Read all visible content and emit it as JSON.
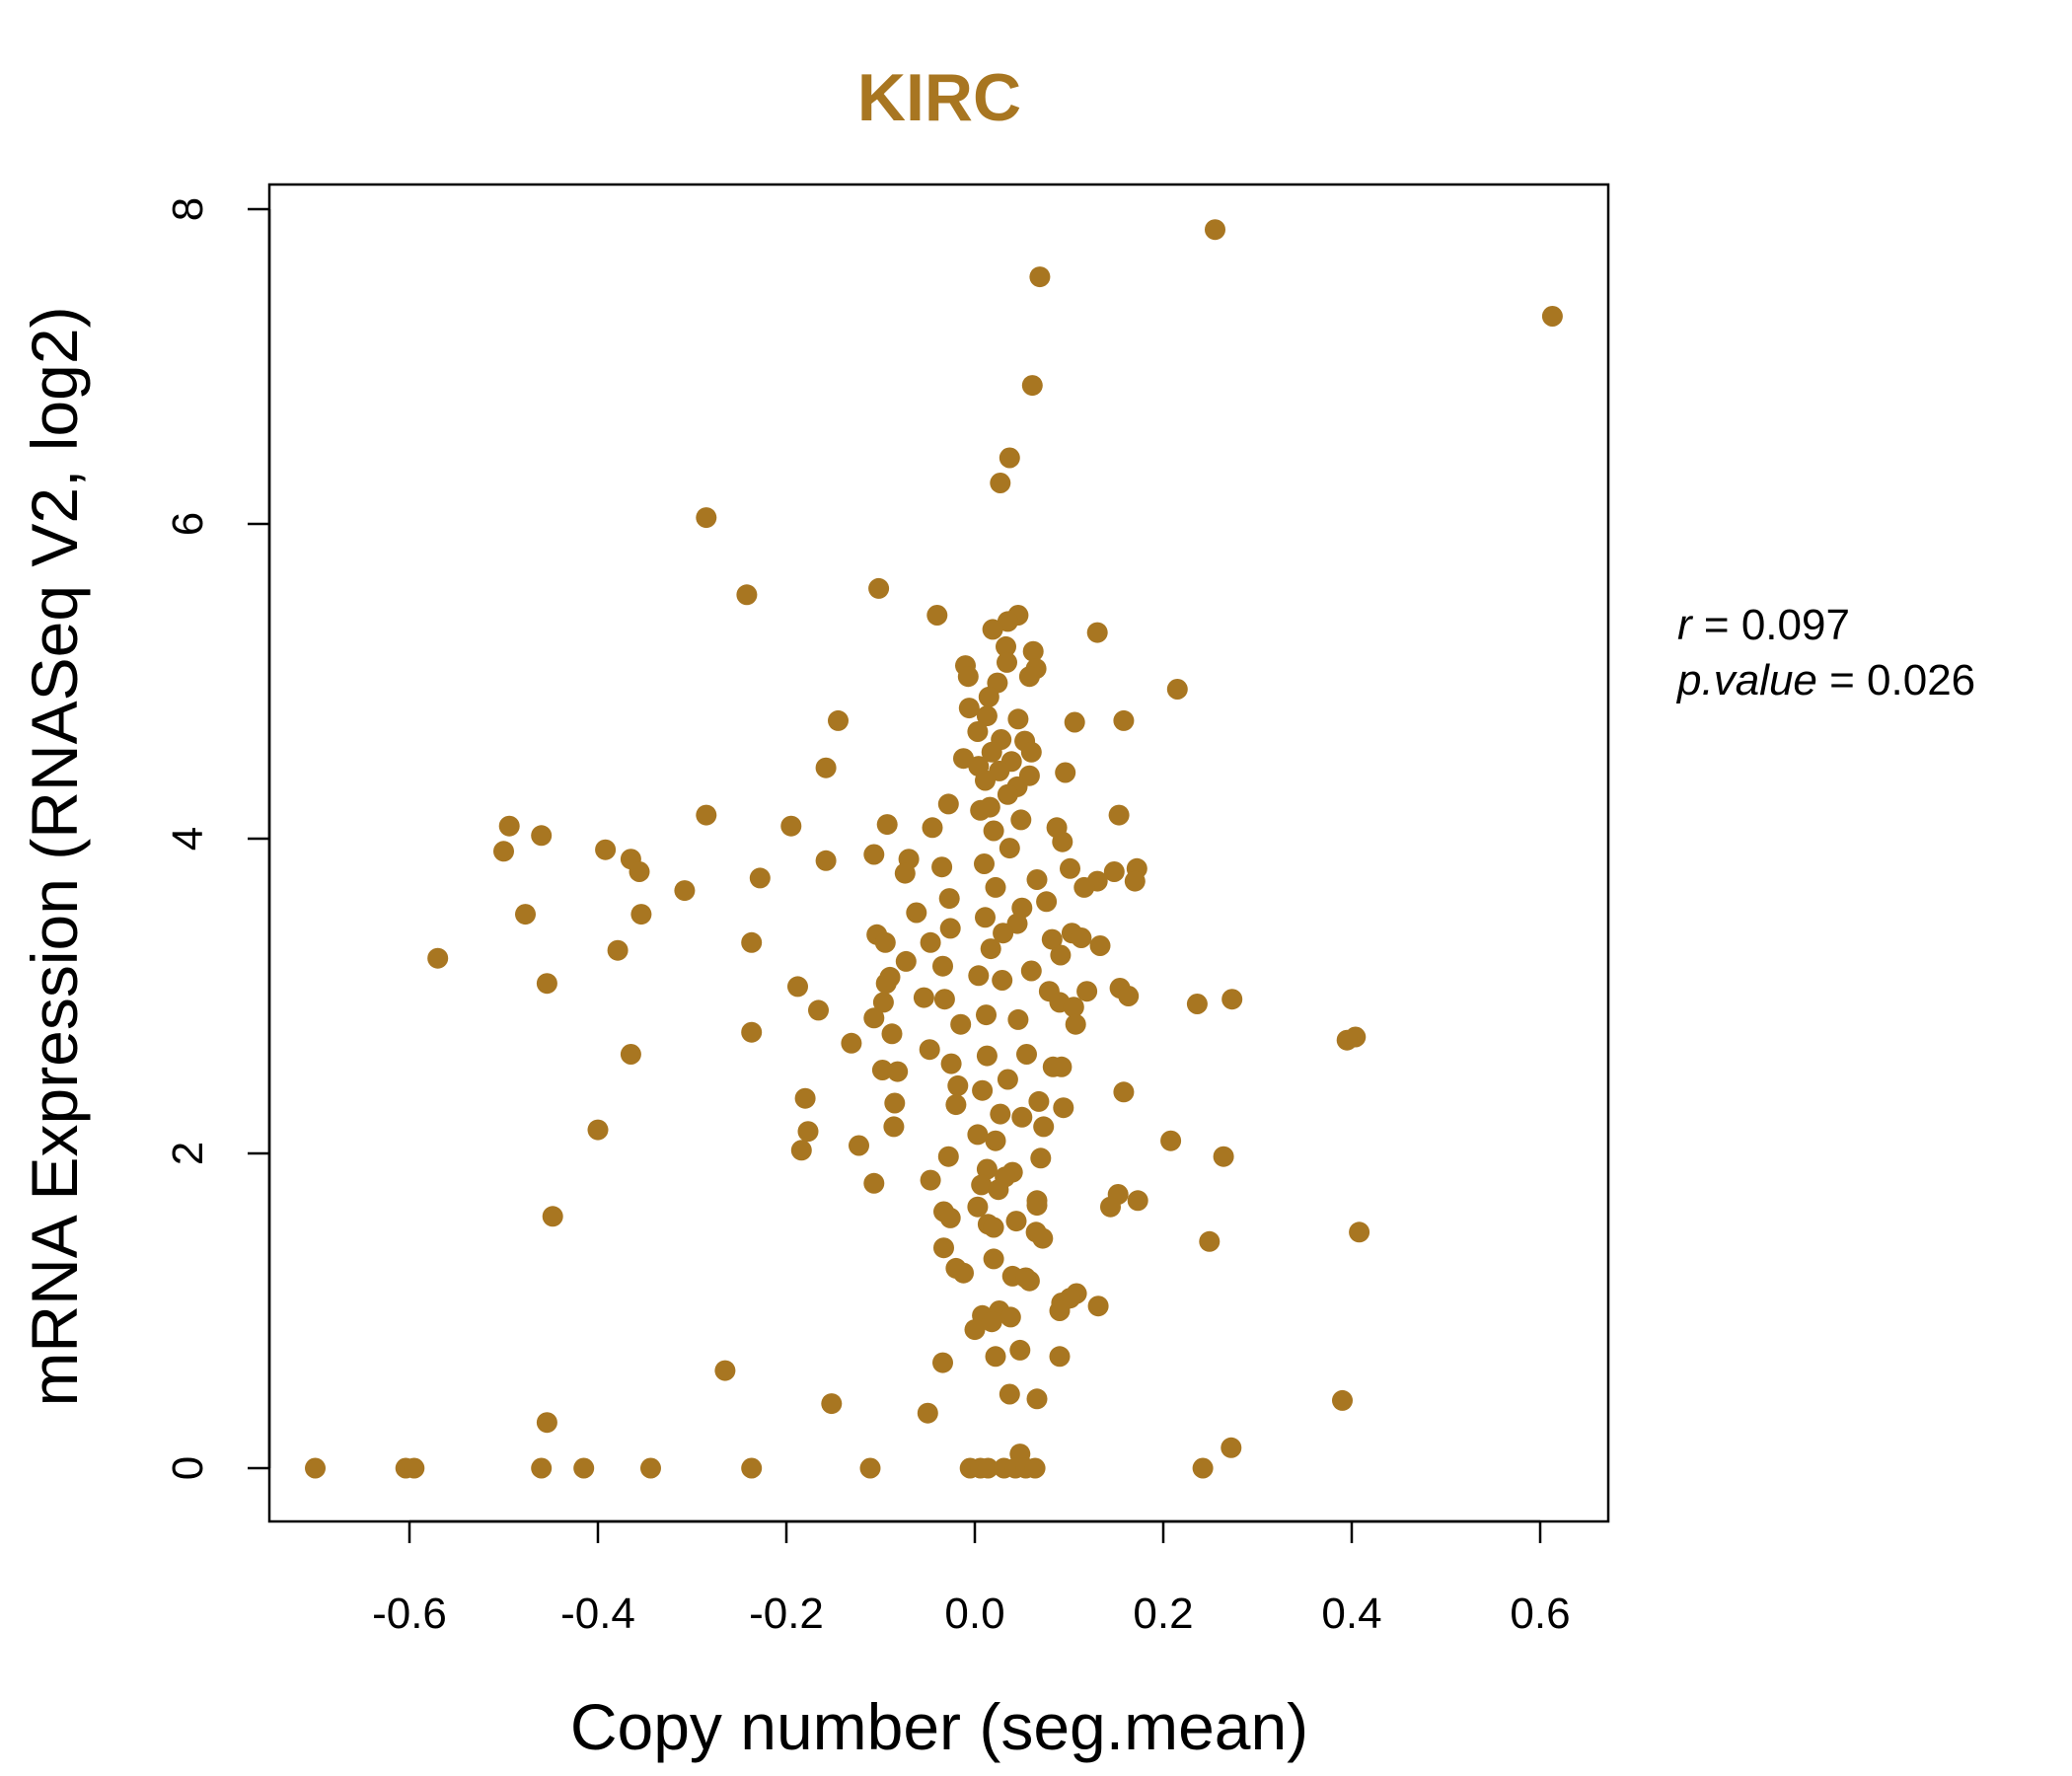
{
  "chart_data": {
    "type": "scatter",
    "title": "KIRC",
    "xlabel": "Copy number (seg.mean)",
    "ylabel": "mRNA Expression (RNASeq V2, log2)",
    "xlim": [
      -0.75,
      0.67
    ],
    "ylim": [
      -0.3,
      8.2
    ],
    "xticks": [
      "-0.6",
      "-0.4",
      "-0.2",
      "0.0",
      "0.2",
      "0.4",
      "0.6"
    ],
    "yticks": [
      "0",
      "2",
      "4",
      "6",
      "8"
    ],
    "grid": false,
    "color": "#A87621",
    "stats": {
      "r_label": "r",
      "r_value": "0.097",
      "p_label": "p.value",
      "p_value": "0.026"
    },
    "points": [
      [
        0.255,
        7.87
      ],
      [
        0.069,
        7.57
      ],
      [
        0.613,
        7.32
      ],
      [
        0.061,
        6.88
      ],
      [
        0.037,
        6.42
      ],
      [
        0.027,
        6.26
      ],
      [
        -0.285,
        6.04
      ],
      [
        -0.102,
        5.59
      ],
      [
        -0.242,
        5.55
      ],
      [
        -0.04,
        5.42
      ],
      [
        0.046,
        5.42
      ],
      [
        0.035,
        5.38
      ],
      [
        0.019,
        5.33
      ],
      [
        0.13,
        5.31
      ],
      [
        0.062,
        5.19
      ],
      [
        0.033,
        5.22
      ],
      [
        -0.01,
        5.1
      ],
      [
        0.065,
        5.08
      ],
      [
        0.034,
        5.12
      ],
      [
        0.058,
        5.03
      ],
      [
        -0.007,
        5.03
      ],
      [
        0.024,
        4.99
      ],
      [
        0.215,
        4.95
      ],
      [
        0.015,
        4.9
      ],
      [
        -0.006,
        4.83
      ],
      [
        0.013,
        4.78
      ],
      [
        0.106,
        4.74
      ],
      [
        0.158,
        4.75
      ],
      [
        -0.145,
        4.75
      ],
      [
        0.046,
        4.76
      ],
      [
        0.003,
        4.68
      ],
      [
        0.028,
        4.63
      ],
      [
        0.053,
        4.62
      ],
      [
        0.06,
        4.55
      ],
      [
        -0.012,
        4.51
      ],
      [
        0.018,
        4.55
      ],
      [
        0.039,
        4.49
      ],
      [
        -0.158,
        4.45
      ],
      [
        0.096,
        4.42
      ],
      [
        0.058,
        4.4
      ],
      [
        0.004,
        4.46
      ],
      [
        0.026,
        4.43
      ],
      [
        0.011,
        4.37
      ],
      [
        0.045,
        4.33
      ],
      [
        -0.028,
        4.22
      ],
      [
        0.016,
        4.2
      ],
      [
        0.035,
        4.28
      ],
      [
        0.006,
        4.18
      ],
      [
        0.153,
        4.15
      ],
      [
        -0.285,
        4.15
      ],
      [
        0.049,
        4.12
      ],
      [
        -0.494,
        4.08
      ],
      [
        -0.195,
        4.08
      ],
      [
        -0.093,
        4.09
      ],
      [
        0.087,
        4.07
      ],
      [
        -0.045,
        4.07
      ],
      [
        0.02,
        4.05
      ],
      [
        -0.46,
        4.02
      ],
      [
        0.093,
        3.98
      ],
      [
        -0.392,
        3.93
      ],
      [
        -0.5,
        3.92
      ],
      [
        -0.107,
        3.9
      ],
      [
        -0.07,
        3.87
      ],
      [
        -0.365,
        3.87
      ],
      [
        -0.158,
        3.86
      ],
      [
        0.037,
        3.94
      ],
      [
        0.01,
        3.84
      ],
      [
        0.101,
        3.81
      ],
      [
        -0.035,
        3.82
      ],
      [
        0.172,
        3.81
      ],
      [
        -0.356,
        3.79
      ],
      [
        0.148,
        3.79
      ],
      [
        -0.074,
        3.78
      ],
      [
        0.13,
        3.73
      ],
      [
        -0.228,
        3.75
      ],
      [
        0.066,
        3.74
      ],
      [
        0.17,
        3.73
      ],
      [
        0.116,
        3.69
      ],
      [
        -0.308,
        3.67
      ],
      [
        0.022,
        3.69
      ],
      [
        -0.027,
        3.62
      ],
      [
        0.076,
        3.6
      ],
      [
        0.05,
        3.56
      ],
      [
        -0.062,
        3.53
      ],
      [
        -0.354,
        3.52
      ],
      [
        -0.477,
        3.52
      ],
      [
        0.011,
        3.5
      ],
      [
        0.045,
        3.46
      ],
      [
        -0.026,
        3.43
      ],
      [
        0.03,
        3.4
      ],
      [
        0.103,
        3.4
      ],
      [
        -0.104,
        3.39
      ],
      [
        0.082,
        3.36
      ],
      [
        0.113,
        3.37
      ],
      [
        -0.095,
        3.34
      ],
      [
        -0.237,
        3.34
      ],
      [
        -0.047,
        3.34
      ],
      [
        0.133,
        3.32
      ],
      [
        -0.379,
        3.29
      ],
      [
        0.017,
        3.3
      ],
      [
        0.091,
        3.26
      ],
      [
        -0.57,
        3.24
      ],
      [
        -0.073,
        3.22
      ],
      [
        -0.034,
        3.19
      ],
      [
        0.06,
        3.16
      ],
      [
        0.004,
        3.13
      ],
      [
        -0.09,
        3.12
      ],
      [
        0.029,
        3.1
      ],
      [
        -0.454,
        3.08
      ],
      [
        -0.094,
        3.08
      ],
      [
        -0.188,
        3.06
      ],
      [
        0.154,
        3.05
      ],
      [
        0.119,
        3.03
      ],
      [
        0.079,
        3.03
      ],
      [
        -0.054,
        2.99
      ],
      [
        0.163,
        3.0
      ],
      [
        0.273,
        2.98
      ],
      [
        -0.032,
        2.98
      ],
      [
        0.09,
        2.96
      ],
      [
        0.236,
        2.95
      ],
      [
        -0.097,
        2.96
      ],
      [
        0.105,
        2.93
      ],
      [
        -0.166,
        2.91
      ],
      [
        0.012,
        2.88
      ],
      [
        -0.107,
        2.86
      ],
      [
        0.046,
        2.85
      ],
      [
        -0.015,
        2.82
      ],
      [
        0.107,
        2.82
      ],
      [
        -0.088,
        2.76
      ],
      [
        -0.237,
        2.77
      ],
      [
        0.404,
        2.74
      ],
      [
        0.395,
        2.72
      ],
      [
        -0.131,
        2.7
      ],
      [
        -0.048,
        2.66
      ],
      [
        0.055,
        2.63
      ],
      [
        -0.365,
        2.63
      ],
      [
        0.013,
        2.62
      ],
      [
        -0.025,
        2.57
      ],
      [
        0.083,
        2.55
      ],
      [
        0.092,
        2.55
      ],
      [
        -0.098,
        2.53
      ],
      [
        -0.082,
        2.52
      ],
      [
        0.035,
        2.47
      ],
      [
        -0.018,
        2.43
      ],
      [
        0.008,
        2.4
      ],
      [
        0.158,
        2.39
      ],
      [
        -0.18,
        2.35
      ],
      [
        -0.085,
        2.32
      ],
      [
        0.094,
        2.29
      ],
      [
        -0.02,
        2.31
      ],
      [
        0.068,
        2.33
      ],
      [
        0.027,
        2.25
      ],
      [
        0.05,
        2.23
      ],
      [
        0.073,
        2.17
      ],
      [
        -0.086,
        2.17
      ],
      [
        -0.177,
        2.14
      ],
      [
        -0.4,
        2.15
      ],
      [
        0.003,
        2.12
      ],
      [
        0.022,
        2.08
      ],
      [
        0.208,
        2.08
      ],
      [
        -0.123,
        2.05
      ],
      [
        -0.184,
        2.02
      ],
      [
        0.264,
        1.98
      ],
      [
        0.07,
        1.97
      ],
      [
        -0.028,
        1.98
      ],
      [
        0.013,
        1.9
      ],
      [
        0.04,
        1.88
      ],
      [
        0.032,
        1.85
      ],
      [
        -0.107,
        1.81
      ],
      [
        -0.047,
        1.83
      ],
      [
        0.007,
        1.8
      ],
      [
        0.025,
        1.77
      ],
      [
        0.152,
        1.74
      ],
      [
        0.173,
        1.7
      ],
      [
        0.066,
        1.7
      ],
      [
        0.144,
        1.66
      ],
      [
        0.066,
        1.67
      ],
      [
        0.003,
        1.66
      ],
      [
        -0.033,
        1.63
      ],
      [
        -0.448,
        1.6
      ],
      [
        0.044,
        1.57
      ],
      [
        -0.026,
        1.59
      ],
      [
        0.014,
        1.55
      ],
      [
        0.02,
        1.53
      ],
      [
        0.065,
        1.5
      ],
      [
        0.408,
        1.5
      ],
      [
        0.072,
        1.46
      ],
      [
        0.249,
        1.44
      ],
      [
        -0.033,
        1.4
      ],
      [
        0.02,
        1.33
      ],
      [
        -0.02,
        1.27
      ],
      [
        -0.012,
        1.24
      ],
      [
        0.04,
        1.22
      ],
      [
        0.054,
        1.21
      ],
      [
        0.058,
        1.19
      ],
      [
        0.108,
        1.11
      ],
      [
        0.101,
        1.08
      ],
      [
        0.092,
        1.05
      ],
      [
        0.131,
        1.03
      ],
      [
        0.09,
        1.0
      ],
      [
        0.026,
        1.0
      ],
      [
        0.008,
        0.97
      ],
      [
        0.038,
        0.96
      ],
      [
        0.018,
        0.93
      ],
      [
        0.0,
        0.88
      ],
      [
        0.048,
        0.75
      ],
      [
        0.022,
        0.71
      ],
      [
        0.09,
        0.71
      ],
      [
        -0.034,
        0.67
      ],
      [
        -0.265,
        0.62
      ],
      [
        0.39,
        0.43
      ],
      [
        0.037,
        0.47
      ],
      [
        0.066,
        0.44
      ],
      [
        -0.152,
        0.41
      ],
      [
        -0.05,
        0.35
      ],
      [
        -0.454,
        0.29
      ],
      [
        0.272,
        0.13
      ],
      [
        0.048,
        0.09
      ],
      [
        -0.7,
        0.0
      ],
      [
        -0.604,
        0.0
      ],
      [
        -0.595,
        0.0
      ],
      [
        -0.46,
        0.0
      ],
      [
        -0.415,
        0.0
      ],
      [
        -0.344,
        0.0
      ],
      [
        -0.237,
        0.0
      ],
      [
        -0.111,
        0.0
      ],
      [
        -0.005,
        0.0
      ],
      [
        0.006,
        0.0
      ],
      [
        0.014,
        0.0
      ],
      [
        0.031,
        0.0
      ],
      [
        0.043,
        0.0
      ],
      [
        0.054,
        0.0
      ],
      [
        0.064,
        0.0
      ],
      [
        0.242,
        0.0
      ]
    ]
  }
}
